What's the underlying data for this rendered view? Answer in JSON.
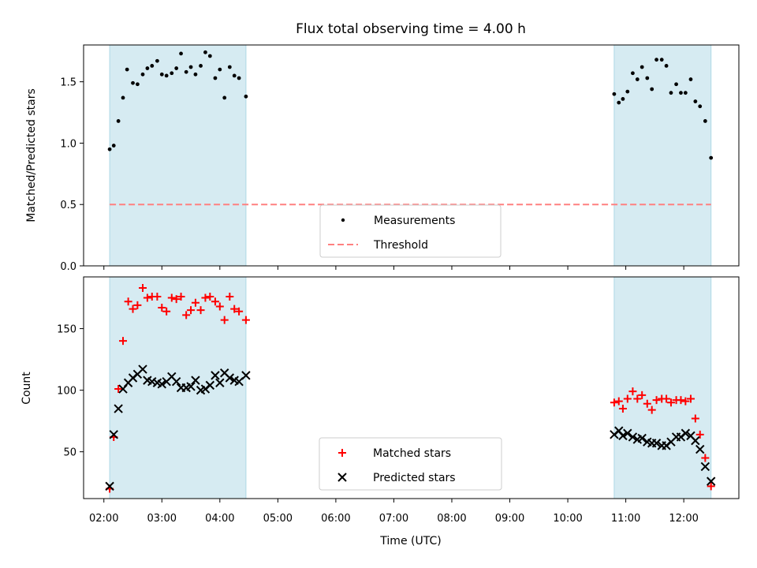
{
  "chart_data": {
    "type": "scatter",
    "title": "Flux total observing time = 4.00 h",
    "xlabel": "Time (UTC)",
    "x_tick_labels": [
      "02:00",
      "03:00",
      "04:00",
      "05:00",
      "06:00",
      "07:00",
      "08:00",
      "09:00",
      "10:00",
      "11:00",
      "12:00"
    ],
    "x_ticks_hours": [
      2,
      3,
      4,
      5,
      6,
      7,
      8,
      9,
      10,
      11,
      12
    ],
    "xlim_hours": [
      1.65,
      12.95
    ],
    "observing_windows_hours": [
      [
        2.1,
        4.45
      ],
      [
        10.8,
        12.47
      ]
    ],
    "colors": {
      "window_fill": "#add8e6",
      "measurements": "#000000",
      "threshold": "#ff8080",
      "matched": "#ff0000",
      "predicted": "#000000"
    },
    "panels": [
      {
        "ylabel": "Matched/Predicted stars",
        "ylim": [
          0,
          1.8
        ],
        "y_ticks": [
          0.0,
          0.5,
          1.0,
          1.5
        ],
        "y_tick_labels": [
          "0.0",
          "0.5",
          "1.0",
          "1.5"
        ],
        "legend": [
          "Measurements",
          "Threshold"
        ],
        "legend_position": "bottom-center",
        "threshold": 0.5,
        "series": [
          {
            "name": "Measurements",
            "marker": "dot",
            "points": [
              [
                2.1,
                0.95
              ],
              [
                2.17,
                0.98
              ],
              [
                2.25,
                1.18
              ],
              [
                2.33,
                1.37
              ],
              [
                2.4,
                1.6
              ],
              [
                2.5,
                1.49
              ],
              [
                2.58,
                1.48
              ],
              [
                2.67,
                1.56
              ],
              [
                2.75,
                1.61
              ],
              [
                2.83,
                1.63
              ],
              [
                2.92,
                1.67
              ],
              [
                3.0,
                1.56
              ],
              [
                3.08,
                1.55
              ],
              [
                3.17,
                1.57
              ],
              [
                3.25,
                1.61
              ],
              [
                3.33,
                1.73
              ],
              [
                3.42,
                1.58
              ],
              [
                3.5,
                1.62
              ],
              [
                3.58,
                1.56
              ],
              [
                3.67,
                1.63
              ],
              [
                3.75,
                1.74
              ],
              [
                3.83,
                1.71
              ],
              [
                3.92,
                1.53
              ],
              [
                4.0,
                1.6
              ],
              [
                4.08,
                1.37
              ],
              [
                4.17,
                1.62
              ],
              [
                4.25,
                1.55
              ],
              [
                4.33,
                1.53
              ],
              [
                4.45,
                1.38
              ],
              [
                10.8,
                1.4
              ],
              [
                10.88,
                1.33
              ],
              [
                10.95,
                1.36
              ],
              [
                11.03,
                1.42
              ],
              [
                11.12,
                1.57
              ],
              [
                11.2,
                1.52
              ],
              [
                11.28,
                1.62
              ],
              [
                11.37,
                1.53
              ],
              [
                11.45,
                1.44
              ],
              [
                11.53,
                1.68
              ],
              [
                11.62,
                1.68
              ],
              [
                11.7,
                1.63
              ],
              [
                11.78,
                1.41
              ],
              [
                11.87,
                1.48
              ],
              [
                11.95,
                1.41
              ],
              [
                12.03,
                1.41
              ],
              [
                12.12,
                1.52
              ],
              [
                12.2,
                1.34
              ],
              [
                12.28,
                1.3
              ],
              [
                12.37,
                1.18
              ],
              [
                12.47,
                0.88
              ]
            ]
          }
        ]
      },
      {
        "ylabel": "Count",
        "ylim": [
          12,
          192
        ],
        "y_ticks": [
          50,
          100,
          150
        ],
        "y_tick_labels": [
          "50",
          "100",
          "150"
        ],
        "legend": [
          "Matched stars",
          "Predicted stars"
        ],
        "legend_position": "bottom-center",
        "series": [
          {
            "name": "Matched stars",
            "marker": "plus",
            "points": [
              [
                2.1,
                20
              ],
              [
                2.17,
                62
              ],
              [
                2.25,
                101
              ],
              [
                2.33,
                140
              ],
              [
                2.42,
                172
              ],
              [
                2.5,
                166
              ],
              [
                2.58,
                169
              ],
              [
                2.67,
                183
              ],
              [
                2.75,
                175
              ],
              [
                2.83,
                176
              ],
              [
                2.92,
                176
              ],
              [
                3.0,
                167
              ],
              [
                3.08,
                164
              ],
              [
                3.17,
                175
              ],
              [
                3.25,
                174
              ],
              [
                3.33,
                176
              ],
              [
                3.42,
                161
              ],
              [
                3.5,
                165
              ],
              [
                3.58,
                171
              ],
              [
                3.67,
                165
              ],
              [
                3.75,
                175
              ],
              [
                3.83,
                176
              ],
              [
                3.92,
                172
              ],
              [
                4.0,
                168
              ],
              [
                4.08,
                157
              ],
              [
                4.17,
                176
              ],
              [
                4.25,
                166
              ],
              [
                4.33,
                164
              ],
              [
                4.45,
                157
              ],
              [
                10.8,
                90
              ],
              [
                10.88,
                91
              ],
              [
                10.95,
                85
              ],
              [
                11.03,
                93
              ],
              [
                11.12,
                99
              ],
              [
                11.2,
                93
              ],
              [
                11.28,
                96
              ],
              [
                11.37,
                89
              ],
              [
                11.45,
                84
              ],
              [
                11.53,
                92
              ],
              [
                11.62,
                93
              ],
              [
                11.7,
                93
              ],
              [
                11.78,
                90
              ],
              [
                11.87,
                92
              ],
              [
                11.95,
                92
              ],
              [
                12.03,
                91
              ],
              [
                12.12,
                93
              ],
              [
                12.2,
                77
              ],
              [
                12.28,
                64
              ],
              [
                12.37,
                45
              ],
              [
                12.47,
                22
              ]
            ]
          },
          {
            "name": "Predicted stars",
            "marker": "x",
            "points": [
              [
                2.1,
                22
              ],
              [
                2.17,
                64
              ],
              [
                2.25,
                85
              ],
              [
                2.33,
                101
              ],
              [
                2.42,
                106
              ],
              [
                2.5,
                110
              ],
              [
                2.58,
                113
              ],
              [
                2.67,
                117
              ],
              [
                2.75,
                108
              ],
              [
                2.83,
                107
              ],
              [
                2.92,
                106
              ],
              [
                3.0,
                105
              ],
              [
                3.08,
                107
              ],
              [
                3.17,
                111
              ],
              [
                3.25,
                107
              ],
              [
                3.33,
                102
              ],
              [
                3.42,
                102
              ],
              [
                3.5,
                103
              ],
              [
                3.58,
                108
              ],
              [
                3.67,
                100
              ],
              [
                3.75,
                101
              ],
              [
                3.83,
                104
              ],
              [
                3.92,
                112
              ],
              [
                4.0,
                106
              ],
              [
                4.08,
                114
              ],
              [
                4.17,
                110
              ],
              [
                4.25,
                108
              ],
              [
                4.33,
                107
              ],
              [
                4.45,
                112
              ],
              [
                10.8,
                64
              ],
              [
                10.88,
                67
              ],
              [
                10.95,
                63
              ],
              [
                11.03,
                65
              ],
              [
                11.12,
                62
              ],
              [
                11.2,
                60
              ],
              [
                11.28,
                61
              ],
              [
                11.37,
                58
              ],
              [
                11.45,
                57
              ],
              [
                11.53,
                57
              ],
              [
                11.62,
                55
              ],
              [
                11.7,
                55
              ],
              [
                11.78,
                58
              ],
              [
                11.87,
                62
              ],
              [
                11.95,
                62
              ],
              [
                12.03,
                65
              ],
              [
                12.12,
                63
              ],
              [
                12.2,
                59
              ],
              [
                12.28,
                52
              ],
              [
                12.37,
                38
              ],
              [
                12.47,
                26
              ]
            ]
          }
        ]
      }
    ]
  }
}
